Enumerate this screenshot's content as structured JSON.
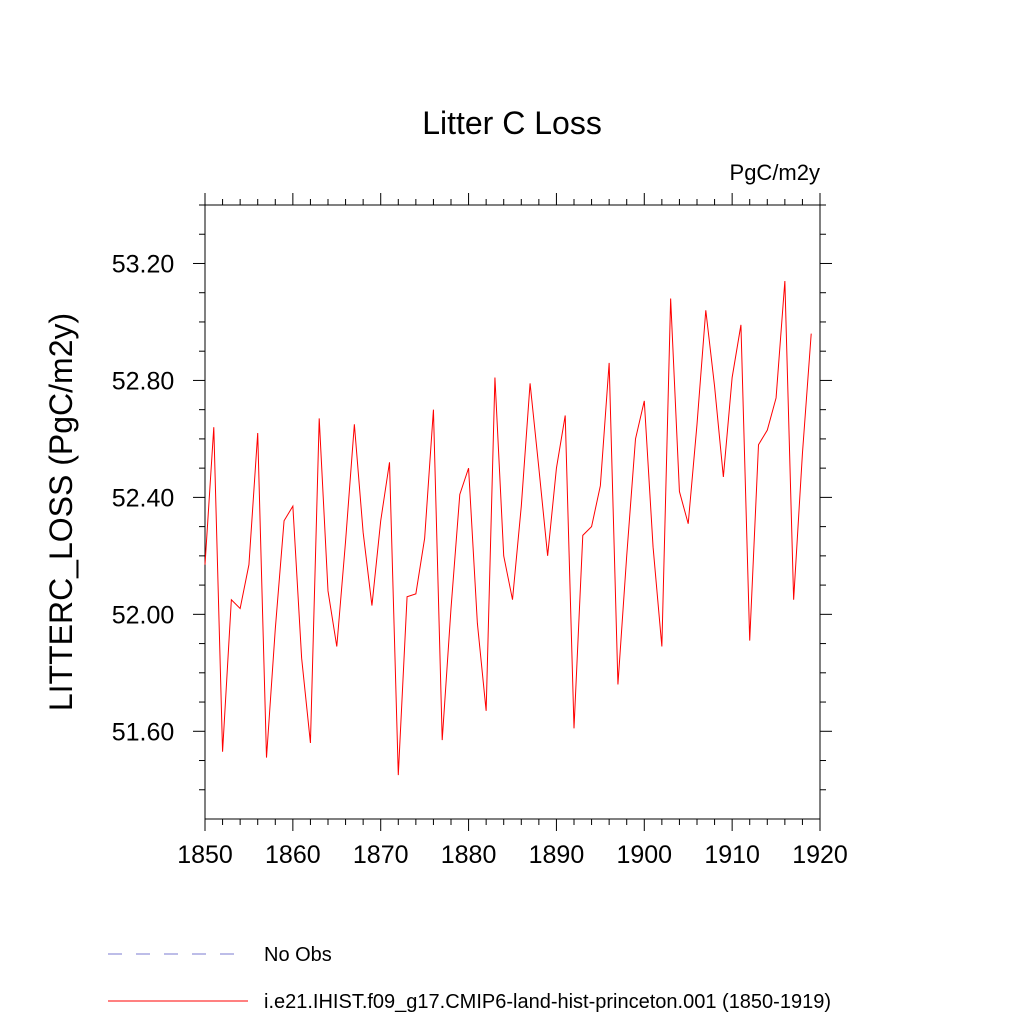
{
  "chart_data": {
    "type": "line",
    "title": "Litter C Loss",
    "units_label": "PgC/m2y",
    "ylabel": "LITTERC_LOSS  (PgC/m2y)",
    "xlabel": "",
    "xlim": [
      1850,
      1920
    ],
    "ylim": [
      51.3,
      53.4
    ],
    "x_ticks": [
      1850,
      1860,
      1870,
      1880,
      1890,
      1900,
      1910,
      1920
    ],
    "y_ticks": [
      51.6,
      52.0,
      52.4,
      52.8,
      53.2
    ],
    "y_tick_labels": [
      "51.60",
      "52.00",
      "52.40",
      "52.80",
      "53.20"
    ],
    "grid": false,
    "series": [
      {
        "name": "i.e21.IHIST.f09_g17.CMIP6-land-hist-princeton.001 (1850-1919)",
        "color": "#ff0000",
        "dash": "solid",
        "x": [
          1850,
          1851,
          1852,
          1853,
          1854,
          1855,
          1856,
          1857,
          1858,
          1859,
          1860,
          1861,
          1862,
          1863,
          1864,
          1865,
          1866,
          1867,
          1868,
          1869,
          1870,
          1871,
          1872,
          1873,
          1874,
          1875,
          1876,
          1877,
          1878,
          1879,
          1880,
          1881,
          1882,
          1883,
          1884,
          1885,
          1886,
          1887,
          1888,
          1889,
          1890,
          1891,
          1892,
          1893,
          1894,
          1895,
          1896,
          1897,
          1898,
          1899,
          1900,
          1901,
          1902,
          1903,
          1904,
          1905,
          1906,
          1907,
          1908,
          1909,
          1910,
          1911,
          1912,
          1913,
          1914,
          1915,
          1916,
          1917,
          1918,
          1919
        ],
        "values": [
          52.17,
          52.64,
          51.53,
          52.05,
          52.02,
          52.17,
          52.62,
          51.51,
          51.95,
          52.32,
          52.37,
          51.85,
          51.56,
          52.67,
          52.08,
          51.89,
          52.25,
          52.65,
          52.28,
          52.03,
          52.32,
          52.52,
          51.45,
          52.06,
          52.07,
          52.26,
          52.7,
          51.57,
          52.02,
          52.41,
          52.5,
          51.97,
          51.67,
          52.81,
          52.2,
          52.05,
          52.37,
          52.79,
          52.5,
          52.2,
          52.5,
          52.68,
          51.61,
          52.27,
          52.3,
          52.44,
          52.86,
          51.76,
          52.2,
          52.6,
          52.73,
          52.23,
          51.89,
          53.08,
          52.42,
          52.31,
          52.65,
          53.04,
          52.78,
          52.47,
          52.81,
          52.99,
          51.91,
          52.58,
          52.63,
          52.74,
          53.14,
          52.05,
          52.55,
          52.96
        ]
      }
    ],
    "legend": {
      "placement": "bottom-left",
      "entries": [
        {
          "label": "No Obs",
          "color": "#7b7bd1",
          "dash": "dashed"
        },
        {
          "label": "i.e21.IHIST.f09_g17.CMIP6-land-hist-princeton.001 (1850-1919)",
          "color": "#ff0000",
          "dash": "solid"
        }
      ]
    }
  }
}
